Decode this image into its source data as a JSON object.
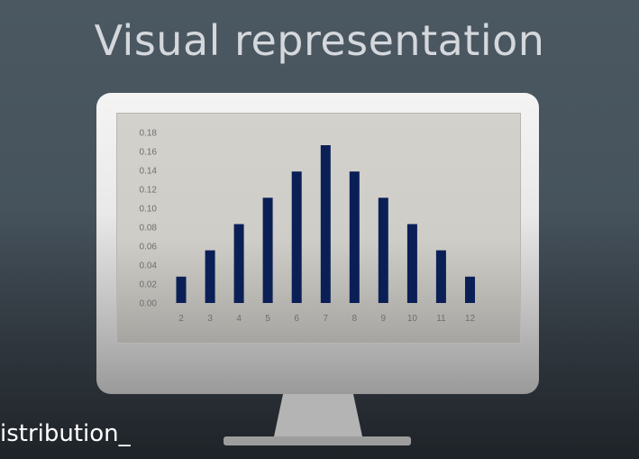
{
  "slide": {
    "title": "Visual representation",
    "caption": "istribution_"
  },
  "colors": {
    "bar": "#0b1f57",
    "tick": "#6e6e6e"
  },
  "chart_data": {
    "type": "bar",
    "title": "",
    "xlabel": "",
    "ylabel": "",
    "categories": [
      "2",
      "3",
      "4",
      "5",
      "6",
      "7",
      "8",
      "9",
      "10",
      "11",
      "12"
    ],
    "values": [
      0.0278,
      0.0556,
      0.0833,
      0.1111,
      0.1389,
      0.1667,
      0.1389,
      0.1111,
      0.0833,
      0.0556,
      0.0278
    ],
    "yticks": [
      "0.00",
      "0.02",
      "0.04",
      "0.06",
      "0.08",
      "0.10",
      "0.12",
      "0.14",
      "0.16",
      "0.18"
    ],
    "ylim": [
      0,
      0.18
    ],
    "grid": false,
    "legend": "none"
  }
}
